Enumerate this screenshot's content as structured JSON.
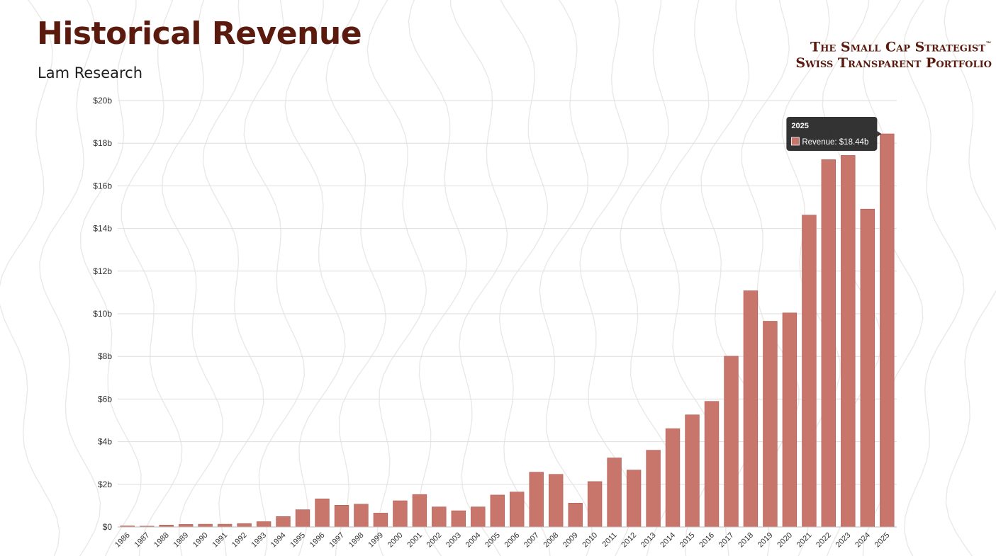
{
  "header": {
    "title": "Historical Revenue",
    "subtitle": "Lam Research"
  },
  "brand": {
    "line1": "The Small Cap Strategist",
    "trademark": "™",
    "line2": "Swiss Transparent Portfolio"
  },
  "colors": {
    "bar": "#c8766c",
    "bar_edge": "#b05e55",
    "title": "#5a1a0e",
    "grid": "#dedede",
    "tooltip_bg": "#222222"
  },
  "tooltip": {
    "year": "2025",
    "label": "Revenue: $18.44b"
  },
  "chart_data": {
    "type": "bar",
    "title": "",
    "xlabel": "",
    "ylabel": "",
    "ylim": [
      0,
      20
    ],
    "grid": true,
    "legend": "none",
    "y_ticks": [
      "$0",
      "$2b",
      "$4b",
      "$6b",
      "$8b",
      "$10b",
      "$12b",
      "$14b",
      "$16b",
      "$18b",
      "$20b"
    ],
    "categories": [
      "1986",
      "1987",
      "1988",
      "1989",
      "1990",
      "1991",
      "1992",
      "1993",
      "1994",
      "1995",
      "1996",
      "1997",
      "1998",
      "1999",
      "2000",
      "2001",
      "2002",
      "2003",
      "2004",
      "2005",
      "2006",
      "2007",
      "2008",
      "2009",
      "2010",
      "2011",
      "2012",
      "2013",
      "2014",
      "2015",
      "2016",
      "2017",
      "2018",
      "2019",
      "2020",
      "2021",
      "2022",
      "2023",
      "2024",
      "2025"
    ],
    "series": [
      {
        "name": "Revenue",
        "values": [
          0.05,
          0.04,
          0.09,
          0.12,
          0.13,
          0.13,
          0.16,
          0.25,
          0.49,
          0.81,
          1.32,
          1.02,
          1.07,
          0.65,
          1.23,
          1.52,
          0.94,
          0.76,
          0.94,
          1.5,
          1.64,
          2.57,
          2.47,
          1.12,
          2.13,
          3.24,
          2.67,
          3.6,
          4.61,
          5.26,
          5.89,
          8.01,
          11.08,
          9.65,
          10.04,
          14.63,
          17.23,
          17.43,
          14.91,
          18.44
        ]
      }
    ]
  }
}
